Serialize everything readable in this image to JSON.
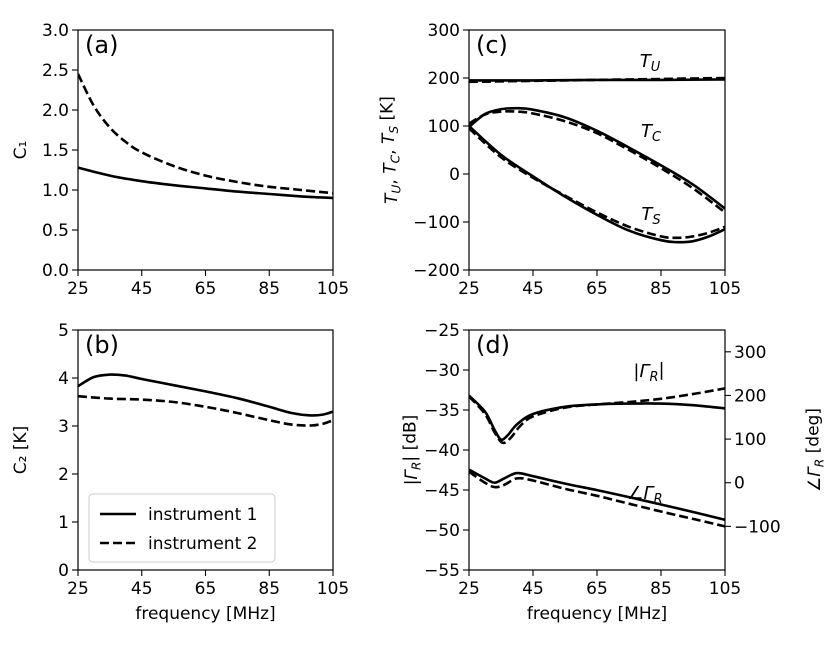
{
  "chart_data": [
    {
      "id": "a",
      "type": "line",
      "panel_label": "(a)",
      "xlabel": "",
      "ylabel": "C₁",
      "xlim": [
        25,
        105
      ],
      "ylim": [
        0.0,
        3.0
      ],
      "xticks": [
        "25",
        "45",
        "65",
        "85",
        "105"
      ],
      "yticks": [
        "0.0",
        "0.5",
        "1.0",
        "1.5",
        "2.0",
        "2.5",
        "3.0"
      ],
      "series": [
        {
          "name": "instrument 1",
          "style": "solid",
          "x": [
            25,
            35,
            45,
            55,
            65,
            75,
            85,
            95,
            105
          ],
          "y": [
            1.28,
            1.18,
            1.11,
            1.06,
            1.02,
            0.98,
            0.95,
            0.92,
            0.9
          ]
        },
        {
          "name": "instrument 2",
          "style": "dashed",
          "x": [
            25,
            30,
            35,
            40,
            45,
            55,
            65,
            75,
            85,
            95,
            105
          ],
          "y": [
            2.45,
            2.05,
            1.78,
            1.6,
            1.47,
            1.3,
            1.18,
            1.1,
            1.04,
            1.0,
            0.96
          ]
        }
      ]
    },
    {
      "id": "b",
      "type": "line",
      "panel_label": "(b)",
      "xlabel": "frequency [MHz]",
      "ylabel": "C₂ [K]",
      "xlim": [
        25,
        105
      ],
      "ylim": [
        0,
        5
      ],
      "xticks": [
        "25",
        "45",
        "65",
        "85",
        "105"
      ],
      "yticks": [
        "0",
        "1",
        "2",
        "3",
        "4",
        "5"
      ],
      "legend": {
        "position": "lower-left",
        "entries": [
          "instrument 1",
          "instrument 2"
        ]
      },
      "series": [
        {
          "name": "instrument 1",
          "style": "solid",
          "x": [
            25,
            30,
            35,
            40,
            45,
            55,
            65,
            75,
            85,
            92,
            98,
            102,
            105
          ],
          "y": [
            3.83,
            4.02,
            4.07,
            4.05,
            3.98,
            3.85,
            3.72,
            3.58,
            3.4,
            3.27,
            3.22,
            3.24,
            3.3
          ]
        },
        {
          "name": "instrument 2",
          "style": "dashed",
          "x": [
            25,
            35,
            45,
            55,
            65,
            75,
            85,
            92,
            98,
            102,
            105
          ],
          "y": [
            3.62,
            3.57,
            3.55,
            3.5,
            3.4,
            3.27,
            3.12,
            3.03,
            3.01,
            3.05,
            3.12
          ]
        }
      ]
    },
    {
      "id": "c",
      "type": "line",
      "panel_label": "(c)",
      "xlabel": "",
      "ylabel": "T_U, T_C, T_S [K]",
      "xlim": [
        25,
        105
      ],
      "ylim": [
        -200,
        300
      ],
      "xticks": [
        "25",
        "45",
        "65",
        "85",
        "105"
      ],
      "yticks": [
        "−200",
        "−100",
        "0",
        "100",
        "200",
        "300"
      ],
      "annotations": [
        "T_U",
        "T_C",
        "T_S"
      ],
      "series": [
        {
          "name": "T_U instrument 1",
          "style": "solid",
          "x": [
            25,
            45,
            65,
            85,
            105
          ],
          "y": [
            195,
            195,
            196,
            196,
            197
          ]
        },
        {
          "name": "T_U instrument 2",
          "style": "dashed",
          "x": [
            25,
            45,
            65,
            85,
            105
          ],
          "y": [
            192,
            194,
            196,
            198,
            200
          ]
        },
        {
          "name": "T_C instrument 1",
          "style": "solid",
          "x": [
            25,
            30,
            35,
            40,
            45,
            55,
            65,
            75,
            85,
            95,
            105
          ],
          "y": [
            98,
            125,
            135,
            137,
            134,
            118,
            90,
            55,
            18,
            -22,
            -72
          ]
        },
        {
          "name": "T_C instrument 2",
          "style": "dashed",
          "x": [
            25,
            30,
            35,
            40,
            45,
            55,
            65,
            75,
            85,
            95,
            105
          ],
          "y": [
            105,
            124,
            130,
            130,
            126,
            110,
            85,
            50,
            12,
            -30,
            -80
          ]
        },
        {
          "name": "T_S instrument 1",
          "style": "solid",
          "x": [
            25,
            35,
            45,
            55,
            65,
            75,
            85,
            90,
            95,
            100,
            105
          ],
          "y": [
            100,
            40,
            -5,
            -47,
            -85,
            -118,
            -138,
            -142,
            -140,
            -130,
            -115
          ]
        },
        {
          "name": "T_S instrument 2",
          "style": "dashed",
          "x": [
            25,
            35,
            45,
            55,
            65,
            75,
            85,
            90,
            95,
            100,
            105
          ],
          "y": [
            95,
            35,
            -8,
            -45,
            -80,
            -110,
            -130,
            -133,
            -130,
            -122,
            -110
          ]
        }
      ]
    },
    {
      "id": "d",
      "type": "line",
      "panel_label": "(d)",
      "xlabel": "frequency [MHz]",
      "ylabel": "|Γ_R| [dB]",
      "ylabel_right": "∠Γ_R [deg]",
      "xlim": [
        25,
        105
      ],
      "ylim": [
        -55,
        -25
      ],
      "ylim_right": [
        -200,
        350
      ],
      "xticks": [
        "25",
        "45",
        "65",
        "85",
        "105"
      ],
      "yticks": [
        "−55",
        "−50",
        "−45",
        "−40",
        "−35",
        "−30",
        "−25"
      ],
      "yticks_right": [
        "−100",
        "0",
        "100",
        "200",
        "300"
      ],
      "annotations": [
        "|Γ_R|",
        "∠Γ_R"
      ],
      "series": [
        {
          "name": "|Γ_R| instrument 1",
          "style": "solid",
          "axis": "left",
          "x": [
            25,
            30,
            33,
            35,
            37,
            40,
            45,
            55,
            65,
            75,
            85,
            95,
            105
          ],
          "y": [
            -33.2,
            -35.2,
            -37.5,
            -38.7,
            -38.2,
            -36.8,
            -35.5,
            -34.6,
            -34.3,
            -34.2,
            -34.2,
            -34.4,
            -34.8
          ]
        },
        {
          "name": "|Γ_R| instrument 2",
          "style": "dashed",
          "axis": "left",
          "x": [
            25,
            30,
            33,
            35.5,
            38,
            41,
            45,
            55,
            65,
            75,
            85,
            95,
            105
          ],
          "y": [
            -33.3,
            -35.5,
            -37.8,
            -39.1,
            -38.5,
            -37.0,
            -35.8,
            -34.7,
            -34.3,
            -34.0,
            -33.6,
            -33.0,
            -32.3
          ]
        },
        {
          "name": "∠Γ_R instrument 1",
          "style": "solid",
          "axis": "right",
          "x": [
            25,
            30,
            33,
            36,
            40,
            45,
            55,
            65,
            75,
            85,
            95,
            105
          ],
          "y": [
            30,
            10,
            0,
            10,
            22,
            15,
            -2,
            -17,
            -33,
            -50,
            -67,
            -85
          ]
        },
        {
          "name": "∠Γ_R instrument 2",
          "style": "dashed",
          "axis": "right",
          "x": [
            25,
            30,
            33,
            36,
            40,
            45,
            55,
            65,
            75,
            85,
            95,
            105
          ],
          "y": [
            25,
            0,
            -10,
            -5,
            10,
            5,
            -14,
            -30,
            -48,
            -66,
            -83,
            -100
          ]
        }
      ]
    }
  ]
}
